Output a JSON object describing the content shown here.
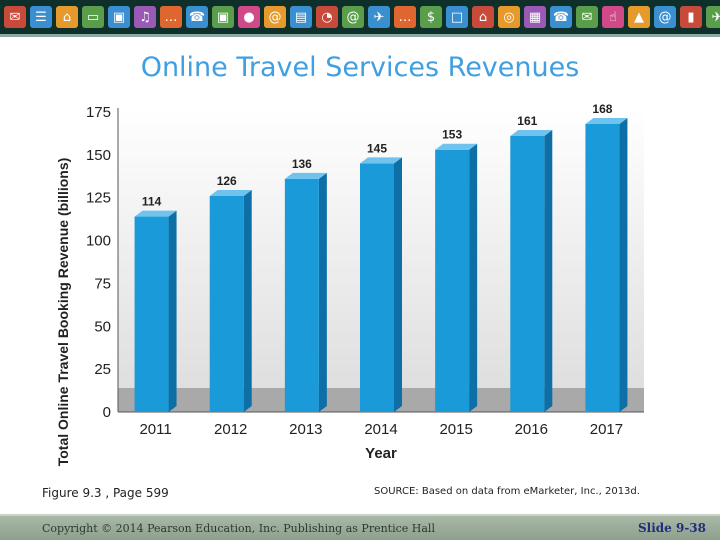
{
  "slide_title": "Online Travel Services Revenues",
  "banner": {
    "icons": [
      "email-icon",
      "shopping-cart-icon",
      "home-icon",
      "monitor-icon",
      "truck-icon",
      "music-icon",
      "sms-icon",
      "phone-icon",
      "truck-icon",
      "chat-icon",
      "at-sign-icon",
      "briefcase-icon",
      "wifi-icon",
      "at-sign-icon",
      "airplane-icon",
      "sms-icon",
      "money-icon",
      "desktop-icon",
      "home-icon",
      "piggy-bank-icon",
      "calculator-icon",
      "phone-icon",
      "email-icon",
      "thumbs-up-icon",
      "bag-icon",
      "at-sign-icon",
      "book-icon",
      "airplane-icon",
      "wifi-icon",
      "cart-icon",
      "phone-icon",
      "monitor-icon"
    ],
    "tile_colors": [
      "#c84a3a",
      "#3a8fd0",
      "#e59a2b",
      "#5a9e4b",
      "#3a8fd0",
      "#9b59b6",
      "#e0662f",
      "#3a8fd0",
      "#5a9e4b",
      "#d04a8a",
      "#e59a2b",
      "#3a8fd0",
      "#c84a3a",
      "#5a9e4b",
      "#3a8fd0",
      "#e0662f",
      "#5a9e4b",
      "#3a8fd0",
      "#c84a3a",
      "#e59a2b",
      "#9b59b6",
      "#3a8fd0",
      "#5a9e4b",
      "#d04a8a",
      "#e59a2b",
      "#3a8fd0",
      "#c84a3a",
      "#5a9e4b",
      "#3a8fd0",
      "#e0662f",
      "#9b59b6",
      "#3a8fd0"
    ]
  },
  "chart_data": {
    "type": "bar",
    "title": "",
    "xlabel": "Year",
    "ylabel": "Total Online Travel Booking Revenue (billions)",
    "categories": [
      "2011",
      "2012",
      "2013",
      "2014",
      "2015",
      "2016",
      "2017"
    ],
    "values": [
      114,
      126,
      136,
      145,
      153,
      161,
      168
    ],
    "ylim": [
      0,
      175
    ],
    "yticks": [
      0,
      25,
      50,
      75,
      100,
      125,
      150,
      175
    ],
    "bar_color": "#1a9ad8",
    "grid": false,
    "legend": "none"
  },
  "figure_ref": "Figure 9.3 , Page 599",
  "source": "SOURCE: Based on data from eMarketer, Inc., 2013d.",
  "footer": {
    "copyright": "Copyright © 2014 Pearson Education, Inc. Publishing as Prentice Hall",
    "slide_number": "Slide 9-38"
  }
}
